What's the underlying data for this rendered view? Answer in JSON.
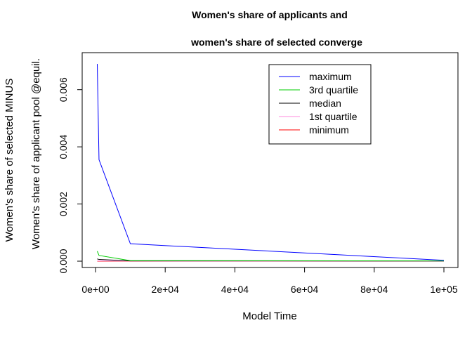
{
  "chart_data": {
    "type": "line",
    "title": [
      "Women's share of applicants and",
      "women's share of selected converge"
    ],
    "xlabel": "Model Time",
    "ylabel": [
      "Women's share of selected MINUS",
      "Women's share of applicant pool @equil."
    ],
    "xlim": [
      0,
      100000
    ],
    "ylim": [
      0,
      0.007
    ],
    "xticks": [
      0,
      20000,
      40000,
      60000,
      80000,
      100000
    ],
    "xtick_labels": [
      "0e+00",
      "2e+04",
      "4e+04",
      "6e+04",
      "8e+04",
      "1e+05"
    ],
    "yticks": [
      0,
      0.002,
      0.004,
      0.006
    ],
    "ytick_labels": [
      "0.000",
      "0.002",
      "0.004",
      "0.006"
    ],
    "grid": false,
    "legend_position": "top-right",
    "series": [
      {
        "name": "maximum",
        "color": "#0000ff",
        "x": [
          500,
          1000,
          10000,
          100000
        ],
        "y": [
          0.0069,
          0.00355,
          0.00061,
          3e-05
        ]
      },
      {
        "name": "3rd quartile",
        "color": "#00cc00",
        "x": [
          500,
          1000,
          10000,
          100000
        ],
        "y": [
          0.00035,
          0.0002,
          2e-05,
          1e-05
        ]
      },
      {
        "name": "median",
        "color": "#000000",
        "x": [
          500,
          1000,
          10000,
          100000
        ],
        "y": [
          8e-05,
          6e-05,
          1e-05,
          5e-06
        ]
      },
      {
        "name": "1st quartile",
        "color": "#ff88dd",
        "x": [
          500,
          1000,
          10000,
          100000
        ],
        "y": [
          1e-05,
          1e-05,
          5e-06,
          2e-06
        ]
      },
      {
        "name": "minimum",
        "color": "#ff0000",
        "x": [
          500,
          1000,
          10000,
          100000
        ],
        "y": [
          0.0,
          0.0,
          0.0,
          0.0
        ]
      }
    ]
  }
}
